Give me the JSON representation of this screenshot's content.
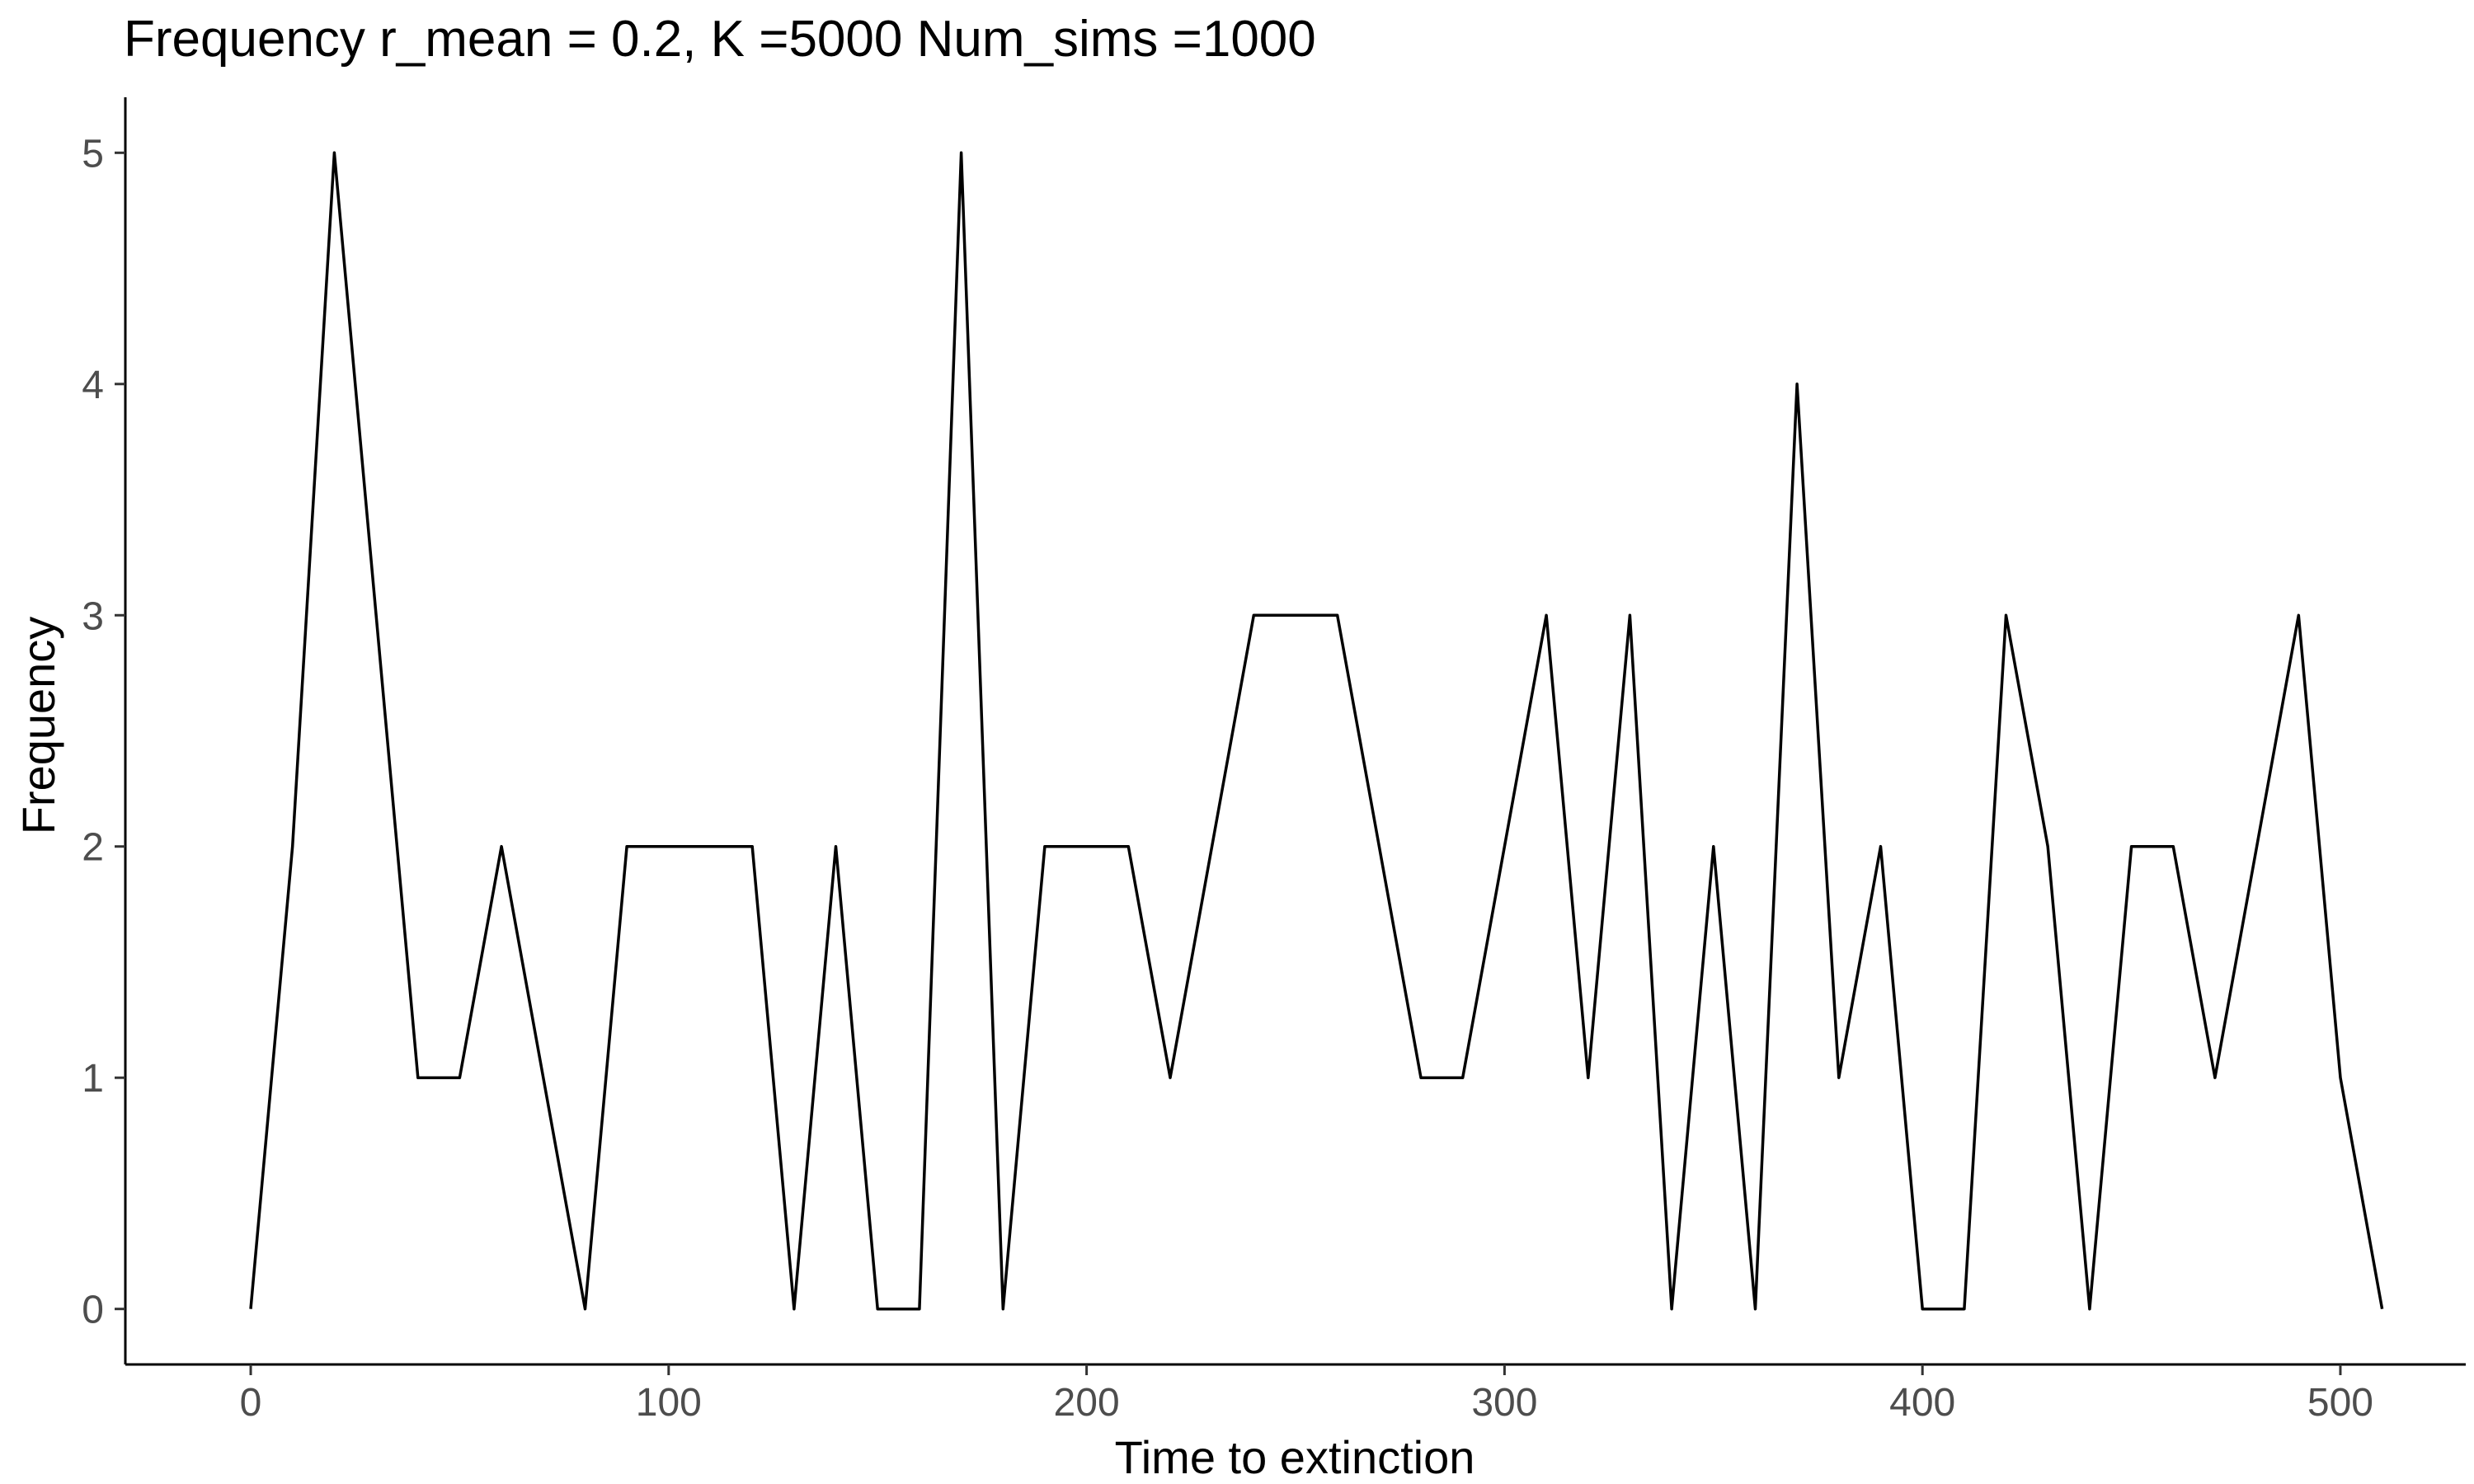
{
  "chart_data": {
    "type": "line",
    "title": "Frequency r_mean = 0.2, K =5000 Num_sims =1000",
    "xlabel": "Time to extinction",
    "ylabel": "Frequency",
    "xlim": [
      -30,
      530
    ],
    "ylim": [
      -0.24,
      5.24
    ],
    "xticks": [
      0,
      100,
      200,
      300,
      400,
      500
    ],
    "yticks": [
      0,
      1,
      2,
      3,
      4,
      5
    ],
    "grid": false,
    "legend": "none",
    "line_color": "#000000",
    "series": [
      {
        "x": [
          0,
          10,
          20,
          30,
          40,
          50,
          60,
          70,
          80,
          90,
          100,
          110,
          120,
          130,
          140,
          150,
          160,
          170,
          180,
          190,
          200,
          210,
          220,
          230,
          240,
          250,
          260,
          270,
          280,
          290,
          300,
          310,
          320,
          330,
          340,
          350,
          360,
          370,
          380,
          390,
          400,
          410,
          420,
          430,
          440,
          450,
          460,
          470,
          480,
          490,
          500,
          510
        ],
        "values": [
          0,
          2,
          5,
          3,
          1,
          1,
          2,
          1,
          0,
          2,
          2,
          2,
          2,
          0,
          2,
          0,
          0,
          5,
          0,
          2,
          2,
          2,
          1,
          2,
          3,
          3,
          3,
          2,
          1,
          1,
          2,
          3,
          1,
          3,
          0,
          2,
          0,
          4,
          1,
          2,
          0,
          0,
          3,
          2,
          0,
          2,
          2,
          1,
          2,
          3,
          1,
          0
        ]
      }
    ]
  }
}
